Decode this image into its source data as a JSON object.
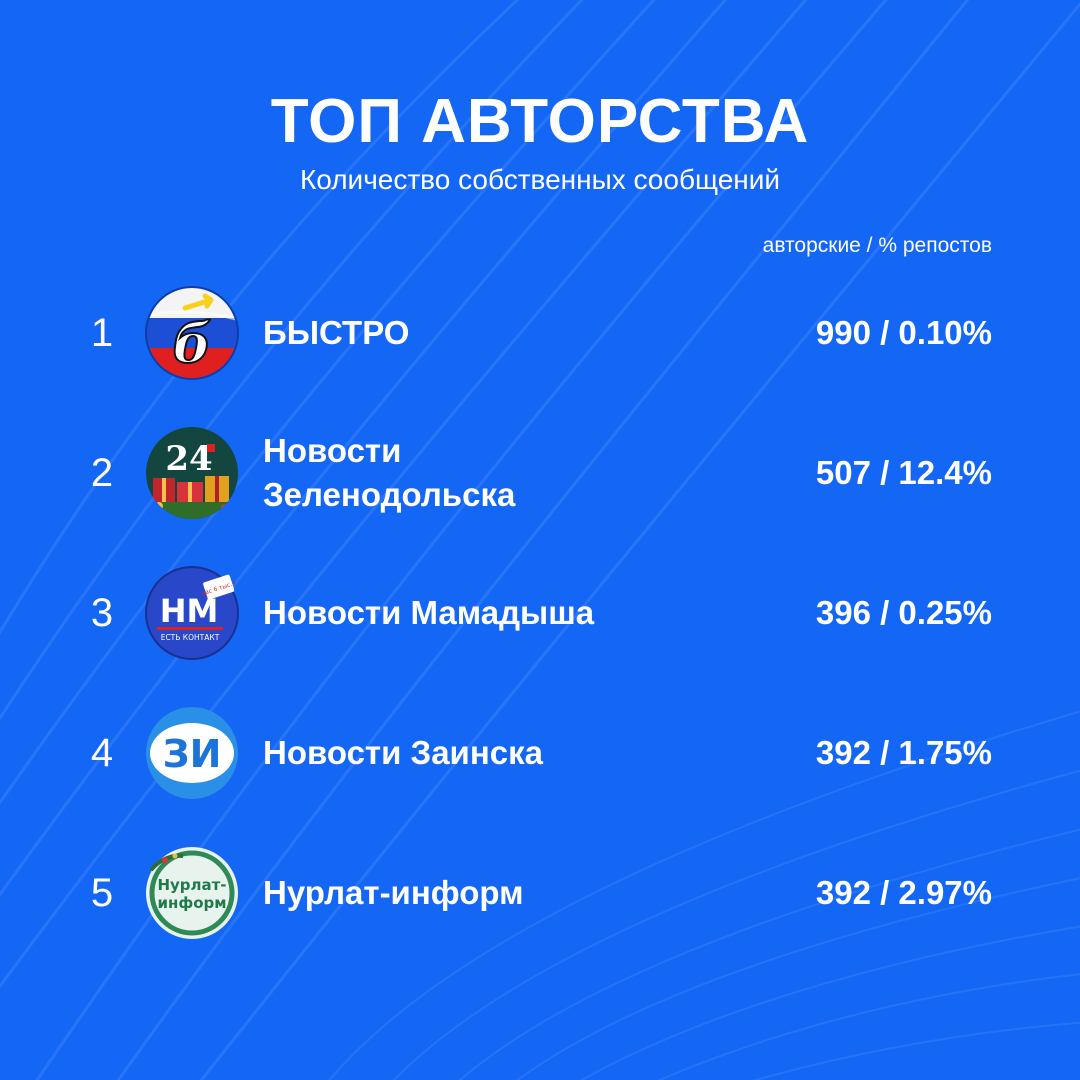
{
  "header": {
    "title": "ТОП АВТОРСТВА",
    "subtitle": "Количество собственных сообщений",
    "column_label": "авторские / % репостов"
  },
  "colors": {
    "background": "#1466F4",
    "text": "#FFFFFF"
  },
  "rows": [
    {
      "rank": "1",
      "name_line1": "БЫСТРО",
      "name_line2": "",
      "value": "990 / 0.10%",
      "logo_icon": "bystro-flag-logo-icon",
      "logo_text": "б"
    },
    {
      "rank": "2",
      "name_line1": "Новости",
      "name_line2": "Зеленодольска",
      "value": "507 / 12.4%",
      "logo_icon": "news24-gifts-logo-icon",
      "logo_text": "24"
    },
    {
      "rank": "3",
      "name_line1": "Новости Мамадыша",
      "name_line2": "",
      "value": "396 / 0.25%",
      "logo_icon": "nm-contact-logo-icon",
      "logo_text": "НМ",
      "logo_subtext": "ЕСТЬ КОНТАКТ",
      "logo_badge": "нас 6 тыс.+"
    },
    {
      "rank": "4",
      "name_line1": "Новости Заинска",
      "name_line2": "",
      "value": "392 / 1.75%",
      "logo_icon": "zi-logo-icon",
      "logo_text": "ЗИ"
    },
    {
      "rank": "5",
      "name_line1": "Нурлат-информ",
      "name_line2": "",
      "value": "392 / 2.97%",
      "logo_icon": "nurlat-inform-logo-icon",
      "logo_text_line1": "Нурлат-",
      "logo_text_line2": "информ"
    }
  ]
}
